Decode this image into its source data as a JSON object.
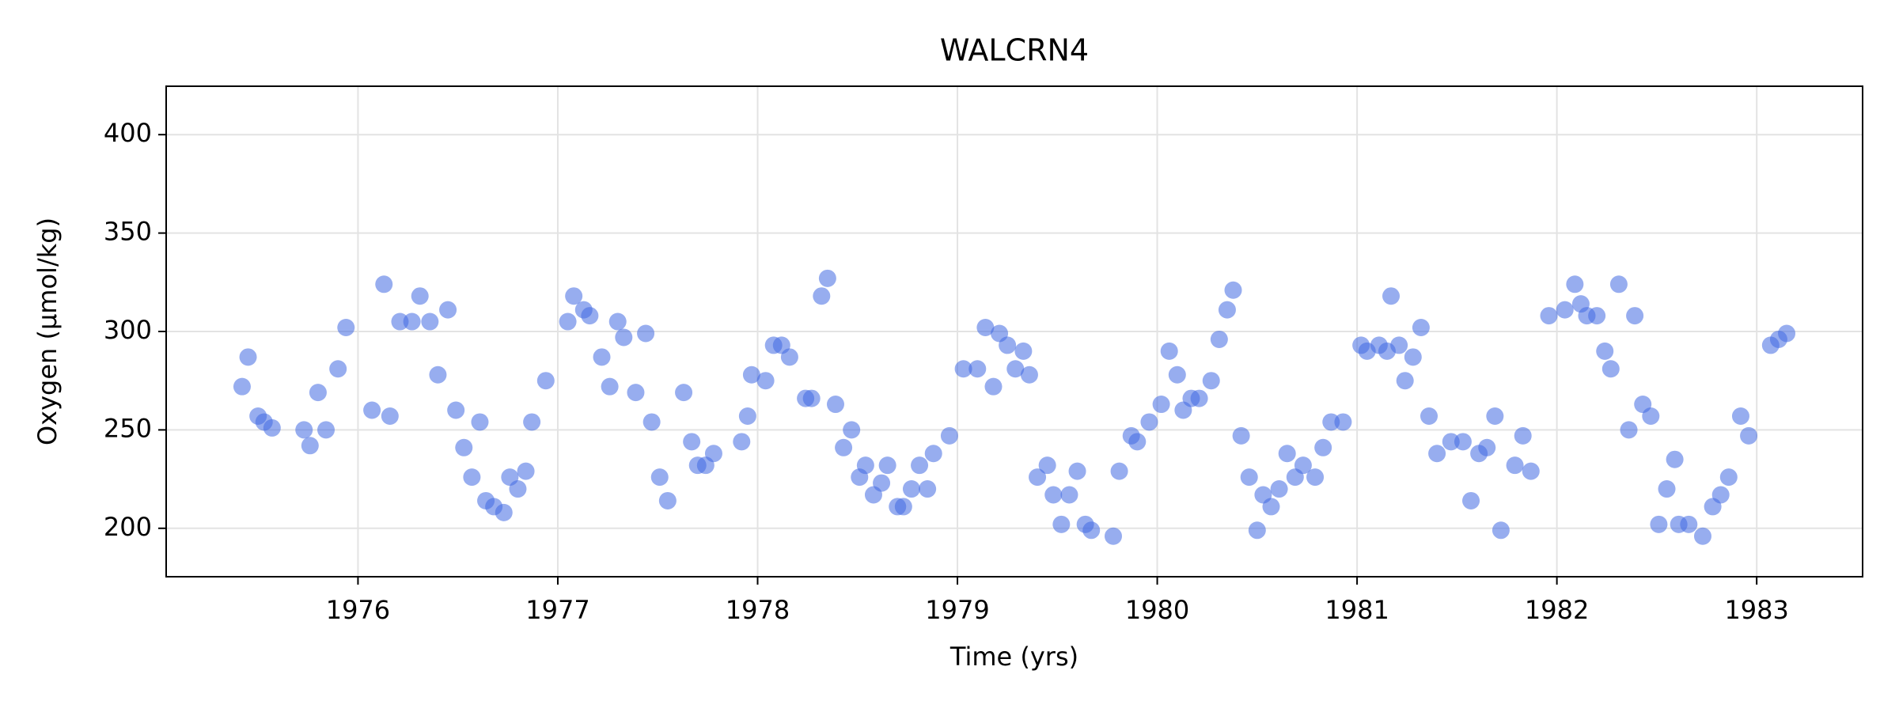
{
  "chart_data": {
    "type": "scatter",
    "title": "WALCRN4",
    "x_label": "Time (yrs)",
    "y_label": "Oxygen (µmol/kg)",
    "x": [
      1975.42,
      1975.45,
      1975.5,
      1975.53,
      1975.57,
      1975.73,
      1975.76,
      1975.8,
      1975.84,
      1975.9,
      1975.94,
      1976.07,
      1976.13,
      1976.16,
      1976.21,
      1976.27,
      1976.31,
      1976.36,
      1976.4,
      1976.45,
      1976.49,
      1976.53,
      1976.57,
      1976.61,
      1976.64,
      1976.68,
      1976.73,
      1976.76,
      1976.8,
      1976.84,
      1976.87,
      1976.94,
      1977.05,
      1977.08,
      1977.13,
      1977.16,
      1977.22,
      1977.26,
      1977.3,
      1977.33,
      1977.39,
      1977.44,
      1977.47,
      1977.51,
      1977.55,
      1977.63,
      1977.67,
      1977.7,
      1977.74,
      1977.78,
      1977.92,
      1977.95,
      1977.97,
      1978.04,
      1978.08,
      1978.12,
      1978.16,
      1978.24,
      1978.27,
      1978.32,
      1978.35,
      1978.39,
      1978.43,
      1978.47,
      1978.51,
      1978.54,
      1978.58,
      1978.62,
      1978.65,
      1978.7,
      1978.73,
      1978.77,
      1978.81,
      1978.85,
      1978.88,
      1978.96,
      1979.03,
      1979.1,
      1979.14,
      1979.18,
      1979.21,
      1979.25,
      1979.29,
      1979.33,
      1979.36,
      1979.4,
      1979.45,
      1979.48,
      1979.52,
      1979.56,
      1979.6,
      1979.64,
      1979.67,
      1979.78,
      1979.81,
      1979.87,
      1979.9,
      1979.96,
      1980.02,
      1980.06,
      1980.1,
      1980.13,
      1980.17,
      1980.21,
      1980.27,
      1980.31,
      1980.35,
      1980.38,
      1980.42,
      1980.46,
      1980.5,
      1980.53,
      1980.57,
      1980.61,
      1980.65,
      1980.69,
      1980.73,
      1980.79,
      1980.83,
      1980.87,
      1980.93,
      1981.02,
      1981.05,
      1981.11,
      1981.15,
      1981.17,
      1981.21,
      1981.24,
      1981.28,
      1981.32,
      1981.36,
      1981.4,
      1981.47,
      1981.53,
      1981.57,
      1981.61,
      1981.65,
      1981.69,
      1981.72,
      1981.79,
      1981.83,
      1981.87,
      1981.96,
      1982.04,
      1982.09,
      1982.12,
      1982.15,
      1982.2,
      1982.24,
      1982.27,
      1982.31,
      1982.36,
      1982.39,
      1982.43,
      1982.47,
      1982.51,
      1982.55,
      1982.59,
      1982.61,
      1982.66,
      1982.73,
      1982.78,
      1982.82,
      1982.86,
      1982.92,
      1982.96,
      1983.07,
      1983.11,
      1983.15
    ],
    "values": [
      272,
      287,
      257,
      254,
      251,
      250,
      242,
      269,
      250,
      281,
      302,
      260,
      324,
      257,
      305,
      305,
      318,
      305,
      278,
      311,
      260,
      241,
      226,
      254,
      214,
      211,
      208,
      226,
      220,
      229,
      254,
      275,
      305,
      318,
      311,
      308,
      287,
      272,
      305,
      297,
      269,
      299,
      254,
      226,
      214,
      269,
      244,
      232,
      232,
      238,
      244,
      257,
      278,
      275,
      293,
      293,
      287,
      266,
      266,
      318,
      327,
      263,
      241,
      250,
      226,
      232,
      217,
      223,
      232,
      211,
      211,
      220,
      232,
      220,
      238,
      247,
      281,
      281,
      302,
      272,
      299,
      293,
      281,
      290,
      278,
      226,
      232,
      217,
      202,
      217,
      229,
      202,
      199,
      196,
      229,
      247,
      244,
      254,
      263,
      290,
      278,
      260,
      266,
      266,
      275,
      296,
      311,
      321,
      247,
      226,
      199,
      217,
      211,
      220,
      238,
      226,
      232,
      226,
      241,
      254,
      254,
      293,
      290,
      293,
      290,
      318,
      293,
      275,
      287,
      302,
      257,
      238,
      244,
      244,
      214,
      238,
      241,
      257,
      199,
      232,
      247,
      229,
      308,
      311,
      324,
      314,
      308,
      308,
      290,
      281,
      324,
      250,
      308,
      263,
      257,
      202,
      220,
      235,
      202,
      202,
      196,
      211,
      217,
      226,
      257,
      247,
      293,
      296,
      299
    ],
    "color": "#4169e1",
    "xlim": [
      1975.04,
      1983.53
    ],
    "ylim": [
      175.4,
      424.6
    ],
    "xticks": [
      1976,
      1977,
      1978,
      1979,
      1980,
      1981,
      1982,
      1983
    ],
    "yticks": [
      200,
      250,
      300,
      350,
      400
    ],
    "grid": true
  }
}
